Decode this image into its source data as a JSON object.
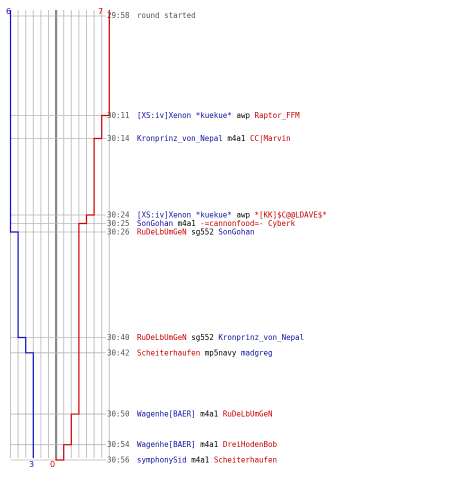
{
  "colors": {
    "blue_team": "#1010c0",
    "red_team": "#d00000",
    "blue_text": "#1010a0",
    "red_text": "#c80000",
    "grid": "#c4c4c4",
    "guide": "#b8b8b8"
  },
  "scores": {
    "blue_start": "6",
    "red_start": "7",
    "blue_end": "3",
    "red_end": "0"
  },
  "header": {
    "time": "29:58",
    "text": "round started"
  },
  "events": [
    {
      "time": "30:11",
      "killer": "[XS:iv]Xenon *kuekue*",
      "killer_team": "blue",
      "weapon": "awp",
      "victim": "Raptor_FFM",
      "victim_team": "red",
      "blue_after": 6,
      "red_after": 6
    },
    {
      "time": "30:14",
      "killer": "Kronprinz_von_Nepal",
      "killer_team": "blue",
      "weapon": "m4a1",
      "victim": "CC|Marvin",
      "victim_team": "red",
      "blue_after": 6,
      "red_after": 5
    },
    {
      "time": "30:24",
      "killer": "[XS:iv]Xenon *kuekue*",
      "killer_team": "blue",
      "weapon": "awp",
      "victim": "*[KK]$C@@LDAVE$*",
      "victim_team": "red",
      "blue_after": 6,
      "red_after": 4
    },
    {
      "time": "30:25",
      "killer": "SonGohan",
      "killer_team": "blue",
      "weapon": "m4a1",
      "victim": "-=cannonfood=- Cyberk",
      "victim_team": "red",
      "blue_after": 6,
      "red_after": 3
    },
    {
      "time": "30:26",
      "killer": "RuDeLbUmGeN",
      "killer_team": "red",
      "weapon": "sg552",
      "victim": "SonGohan",
      "victim_team": "blue",
      "blue_after": 5,
      "red_after": 3
    },
    {
      "time": "30:40",
      "killer": "RuDeLbUmGeN",
      "killer_team": "red",
      "weapon": "sg552",
      "victim": "Kronprinz_von_Nepal",
      "victim_team": "blue",
      "blue_after": 4,
      "red_after": 3
    },
    {
      "time": "30:42",
      "killer": "Scheiterhaufen",
      "killer_team": "red",
      "weapon": "mp5navy",
      "victim": "madgreg",
      "victim_team": "blue",
      "blue_after": 3,
      "red_after": 3
    },
    {
      "time": "30:50",
      "killer": "Wagenhe[BAER]",
      "killer_team": "blue",
      "weapon": "m4a1",
      "victim": "RuDeLbUmGeN",
      "victim_team": "red",
      "blue_after": 3,
      "red_after": 2
    },
    {
      "time": "30:54",
      "killer": "Wagenhe[BAER]",
      "killer_team": "blue",
      "weapon": "m4a1",
      "victim": "DreiHodenBob",
      "victim_team": "red",
      "blue_after": 3,
      "red_after": 1
    },
    {
      "time": "30:56",
      "killer": "symphonySid",
      "killer_team": "blue",
      "weapon": "m4a1",
      "victim": "Scheiterhaufen",
      "victim_team": "red",
      "blue_after": 3,
      "red_after": 0
    }
  ]
}
